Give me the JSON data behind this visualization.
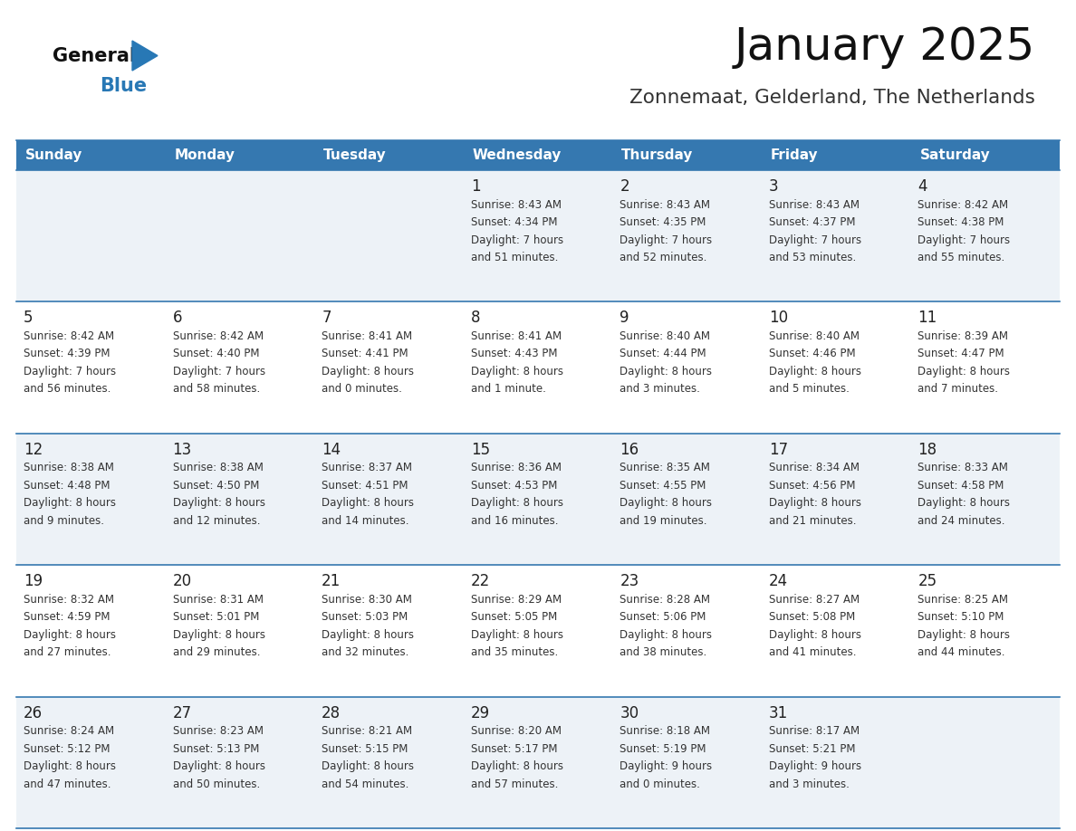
{
  "title": "January 2025",
  "subtitle": "Zonnemaat, Gelderland, The Netherlands",
  "days_of_week": [
    "Sunday",
    "Monday",
    "Tuesday",
    "Wednesday",
    "Thursday",
    "Friday",
    "Saturday"
  ],
  "header_bg": "#3578b0",
  "header_text": "#ffffff",
  "row_bg_odd": "#edf2f7",
  "row_bg_even": "#ffffff",
  "cell_border": "#3578b0",
  "day_number_color": "#222222",
  "cell_text_color": "#333333",
  "title_color": "#111111",
  "subtitle_color": "#333333",
  "logo_general_color": "#111111",
  "logo_blue_color": "#2878b5",
  "weeks": [
    [
      {
        "day": null,
        "info": null
      },
      {
        "day": null,
        "info": null
      },
      {
        "day": null,
        "info": null
      },
      {
        "day": 1,
        "info": "Sunrise: 8:43 AM\nSunset: 4:34 PM\nDaylight: 7 hours\nand 51 minutes."
      },
      {
        "day": 2,
        "info": "Sunrise: 8:43 AM\nSunset: 4:35 PM\nDaylight: 7 hours\nand 52 minutes."
      },
      {
        "day": 3,
        "info": "Sunrise: 8:43 AM\nSunset: 4:37 PM\nDaylight: 7 hours\nand 53 minutes."
      },
      {
        "day": 4,
        "info": "Sunrise: 8:42 AM\nSunset: 4:38 PM\nDaylight: 7 hours\nand 55 minutes."
      }
    ],
    [
      {
        "day": 5,
        "info": "Sunrise: 8:42 AM\nSunset: 4:39 PM\nDaylight: 7 hours\nand 56 minutes."
      },
      {
        "day": 6,
        "info": "Sunrise: 8:42 AM\nSunset: 4:40 PM\nDaylight: 7 hours\nand 58 minutes."
      },
      {
        "day": 7,
        "info": "Sunrise: 8:41 AM\nSunset: 4:41 PM\nDaylight: 8 hours\nand 0 minutes."
      },
      {
        "day": 8,
        "info": "Sunrise: 8:41 AM\nSunset: 4:43 PM\nDaylight: 8 hours\nand 1 minute."
      },
      {
        "day": 9,
        "info": "Sunrise: 8:40 AM\nSunset: 4:44 PM\nDaylight: 8 hours\nand 3 minutes."
      },
      {
        "day": 10,
        "info": "Sunrise: 8:40 AM\nSunset: 4:46 PM\nDaylight: 8 hours\nand 5 minutes."
      },
      {
        "day": 11,
        "info": "Sunrise: 8:39 AM\nSunset: 4:47 PM\nDaylight: 8 hours\nand 7 minutes."
      }
    ],
    [
      {
        "day": 12,
        "info": "Sunrise: 8:38 AM\nSunset: 4:48 PM\nDaylight: 8 hours\nand 9 minutes."
      },
      {
        "day": 13,
        "info": "Sunrise: 8:38 AM\nSunset: 4:50 PM\nDaylight: 8 hours\nand 12 minutes."
      },
      {
        "day": 14,
        "info": "Sunrise: 8:37 AM\nSunset: 4:51 PM\nDaylight: 8 hours\nand 14 minutes."
      },
      {
        "day": 15,
        "info": "Sunrise: 8:36 AM\nSunset: 4:53 PM\nDaylight: 8 hours\nand 16 minutes."
      },
      {
        "day": 16,
        "info": "Sunrise: 8:35 AM\nSunset: 4:55 PM\nDaylight: 8 hours\nand 19 minutes."
      },
      {
        "day": 17,
        "info": "Sunrise: 8:34 AM\nSunset: 4:56 PM\nDaylight: 8 hours\nand 21 minutes."
      },
      {
        "day": 18,
        "info": "Sunrise: 8:33 AM\nSunset: 4:58 PM\nDaylight: 8 hours\nand 24 minutes."
      }
    ],
    [
      {
        "day": 19,
        "info": "Sunrise: 8:32 AM\nSunset: 4:59 PM\nDaylight: 8 hours\nand 27 minutes."
      },
      {
        "day": 20,
        "info": "Sunrise: 8:31 AM\nSunset: 5:01 PM\nDaylight: 8 hours\nand 29 minutes."
      },
      {
        "day": 21,
        "info": "Sunrise: 8:30 AM\nSunset: 5:03 PM\nDaylight: 8 hours\nand 32 minutes."
      },
      {
        "day": 22,
        "info": "Sunrise: 8:29 AM\nSunset: 5:05 PM\nDaylight: 8 hours\nand 35 minutes."
      },
      {
        "day": 23,
        "info": "Sunrise: 8:28 AM\nSunset: 5:06 PM\nDaylight: 8 hours\nand 38 minutes."
      },
      {
        "day": 24,
        "info": "Sunrise: 8:27 AM\nSunset: 5:08 PM\nDaylight: 8 hours\nand 41 minutes."
      },
      {
        "day": 25,
        "info": "Sunrise: 8:25 AM\nSunset: 5:10 PM\nDaylight: 8 hours\nand 44 minutes."
      }
    ],
    [
      {
        "day": 26,
        "info": "Sunrise: 8:24 AM\nSunset: 5:12 PM\nDaylight: 8 hours\nand 47 minutes."
      },
      {
        "day": 27,
        "info": "Sunrise: 8:23 AM\nSunset: 5:13 PM\nDaylight: 8 hours\nand 50 minutes."
      },
      {
        "day": 28,
        "info": "Sunrise: 8:21 AM\nSunset: 5:15 PM\nDaylight: 8 hours\nand 54 minutes."
      },
      {
        "day": 29,
        "info": "Sunrise: 8:20 AM\nSunset: 5:17 PM\nDaylight: 8 hours\nand 57 minutes."
      },
      {
        "day": 30,
        "info": "Sunrise: 8:18 AM\nSunset: 5:19 PM\nDaylight: 9 hours\nand 0 minutes."
      },
      {
        "day": 31,
        "info": "Sunrise: 8:17 AM\nSunset: 5:21 PM\nDaylight: 9 hours\nand 3 minutes."
      },
      {
        "day": null,
        "info": null
      }
    ]
  ]
}
